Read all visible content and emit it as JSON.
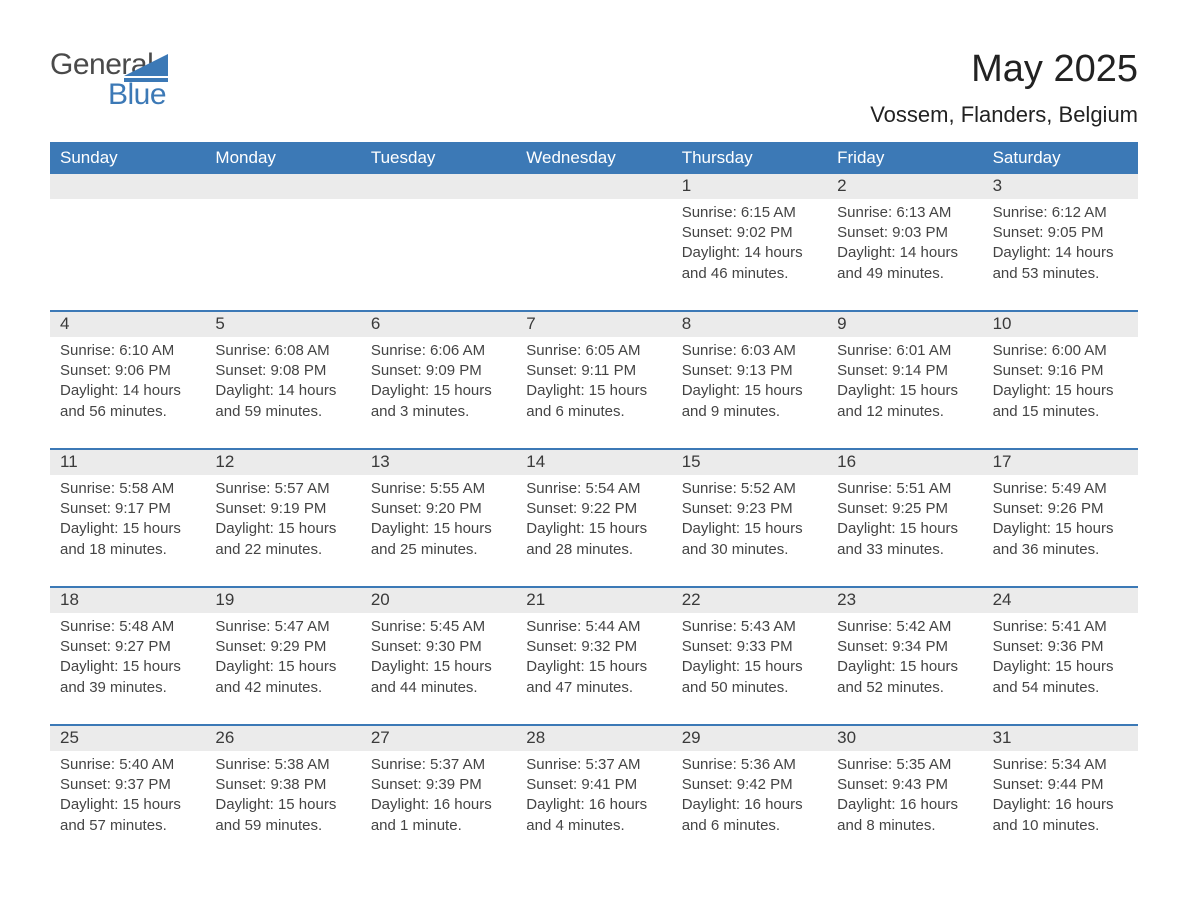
{
  "logo": {
    "word1": "General",
    "word2": "Blue",
    "word1_color": "#4a4a4a",
    "word2_color": "#3c79b6",
    "shape_color": "#3c79b6"
  },
  "title": "May 2025",
  "subtitle": "Vossem, Flanders, Belgium",
  "colors": {
    "header_bg": "#3c79b6",
    "header_text": "#ffffff",
    "daynum_bg": "#ebebeb",
    "week_divider": "#3c79b6",
    "body_text": "#444444",
    "page_bg": "#ffffff"
  },
  "typography": {
    "title_fontsize_pt": 29,
    "subtitle_fontsize_pt": 17,
    "header_fontsize_pt": 13,
    "daynum_fontsize_pt": 13,
    "body_fontsize_pt": 11
  },
  "structure": {
    "type": "calendar-month",
    "columns": 7,
    "weeks": 5,
    "first_weekday": "Sunday",
    "month_start_column_index": 4
  },
  "day_names": [
    "Sunday",
    "Monday",
    "Tuesday",
    "Wednesday",
    "Thursday",
    "Friday",
    "Saturday"
  ],
  "labels": {
    "sunrise_prefix": "Sunrise: ",
    "sunset_prefix": "Sunset: ",
    "daylight_prefix": "Daylight: "
  },
  "days": [
    {
      "n": 1,
      "sunrise": "6:15 AM",
      "sunset": "9:02 PM",
      "daylight": "14 hours and 46 minutes."
    },
    {
      "n": 2,
      "sunrise": "6:13 AM",
      "sunset": "9:03 PM",
      "daylight": "14 hours and 49 minutes."
    },
    {
      "n": 3,
      "sunrise": "6:12 AM",
      "sunset": "9:05 PM",
      "daylight": "14 hours and 53 minutes."
    },
    {
      "n": 4,
      "sunrise": "6:10 AM",
      "sunset": "9:06 PM",
      "daylight": "14 hours and 56 minutes."
    },
    {
      "n": 5,
      "sunrise": "6:08 AM",
      "sunset": "9:08 PM",
      "daylight": "14 hours and 59 minutes."
    },
    {
      "n": 6,
      "sunrise": "6:06 AM",
      "sunset": "9:09 PM",
      "daylight": "15 hours and 3 minutes."
    },
    {
      "n": 7,
      "sunrise": "6:05 AM",
      "sunset": "9:11 PM",
      "daylight": "15 hours and 6 minutes."
    },
    {
      "n": 8,
      "sunrise": "6:03 AM",
      "sunset": "9:13 PM",
      "daylight": "15 hours and 9 minutes."
    },
    {
      "n": 9,
      "sunrise": "6:01 AM",
      "sunset": "9:14 PM",
      "daylight": "15 hours and 12 minutes."
    },
    {
      "n": 10,
      "sunrise": "6:00 AM",
      "sunset": "9:16 PM",
      "daylight": "15 hours and 15 minutes."
    },
    {
      "n": 11,
      "sunrise": "5:58 AM",
      "sunset": "9:17 PM",
      "daylight": "15 hours and 18 minutes."
    },
    {
      "n": 12,
      "sunrise": "5:57 AM",
      "sunset": "9:19 PM",
      "daylight": "15 hours and 22 minutes."
    },
    {
      "n": 13,
      "sunrise": "5:55 AM",
      "sunset": "9:20 PM",
      "daylight": "15 hours and 25 minutes."
    },
    {
      "n": 14,
      "sunrise": "5:54 AM",
      "sunset": "9:22 PM",
      "daylight": "15 hours and 28 minutes."
    },
    {
      "n": 15,
      "sunrise": "5:52 AM",
      "sunset": "9:23 PM",
      "daylight": "15 hours and 30 minutes."
    },
    {
      "n": 16,
      "sunrise": "5:51 AM",
      "sunset": "9:25 PM",
      "daylight": "15 hours and 33 minutes."
    },
    {
      "n": 17,
      "sunrise": "5:49 AM",
      "sunset": "9:26 PM",
      "daylight": "15 hours and 36 minutes."
    },
    {
      "n": 18,
      "sunrise": "5:48 AM",
      "sunset": "9:27 PM",
      "daylight": "15 hours and 39 minutes."
    },
    {
      "n": 19,
      "sunrise": "5:47 AM",
      "sunset": "9:29 PM",
      "daylight": "15 hours and 42 minutes."
    },
    {
      "n": 20,
      "sunrise": "5:45 AM",
      "sunset": "9:30 PM",
      "daylight": "15 hours and 44 minutes."
    },
    {
      "n": 21,
      "sunrise": "5:44 AM",
      "sunset": "9:32 PM",
      "daylight": "15 hours and 47 minutes."
    },
    {
      "n": 22,
      "sunrise": "5:43 AM",
      "sunset": "9:33 PM",
      "daylight": "15 hours and 50 minutes."
    },
    {
      "n": 23,
      "sunrise": "5:42 AM",
      "sunset": "9:34 PM",
      "daylight": "15 hours and 52 minutes."
    },
    {
      "n": 24,
      "sunrise": "5:41 AM",
      "sunset": "9:36 PM",
      "daylight": "15 hours and 54 minutes."
    },
    {
      "n": 25,
      "sunrise": "5:40 AM",
      "sunset": "9:37 PM",
      "daylight": "15 hours and 57 minutes."
    },
    {
      "n": 26,
      "sunrise": "5:38 AM",
      "sunset": "9:38 PM",
      "daylight": "15 hours and 59 minutes."
    },
    {
      "n": 27,
      "sunrise": "5:37 AM",
      "sunset": "9:39 PM",
      "daylight": "16 hours and 1 minute."
    },
    {
      "n": 28,
      "sunrise": "5:37 AM",
      "sunset": "9:41 PM",
      "daylight": "16 hours and 4 minutes."
    },
    {
      "n": 29,
      "sunrise": "5:36 AM",
      "sunset": "9:42 PM",
      "daylight": "16 hours and 6 minutes."
    },
    {
      "n": 30,
      "sunrise": "5:35 AM",
      "sunset": "9:43 PM",
      "daylight": "16 hours and 8 minutes."
    },
    {
      "n": 31,
      "sunrise": "5:34 AM",
      "sunset": "9:44 PM",
      "daylight": "16 hours and 10 minutes."
    }
  ]
}
